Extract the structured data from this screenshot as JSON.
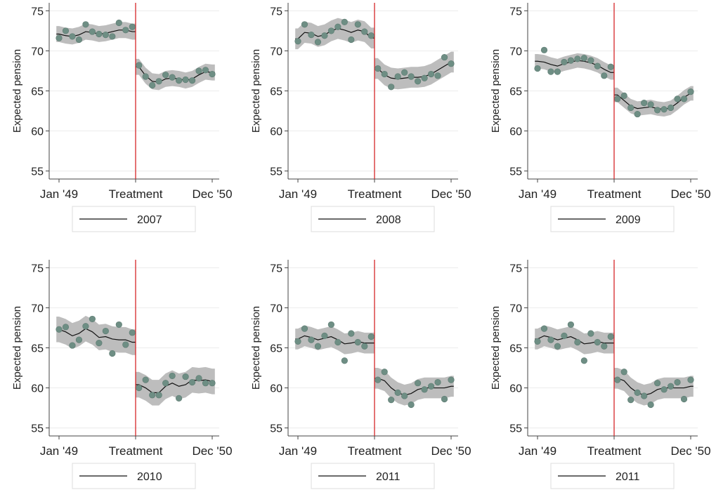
{
  "chart_data": [
    {
      "type": "line",
      "ylabel": "Expected pension",
      "ylim": [
        54,
        76
      ],
      "yticks": [
        55,
        60,
        65,
        70,
        75
      ],
      "x_tick_labels": [
        "Jan '49",
        "Treatment",
        "Dec '50"
      ],
      "legend": "2007",
      "treatment_month": 12,
      "points": [
        [
          1,
          71.6
        ],
        [
          2,
          72.5
        ],
        [
          3,
          71.8
        ],
        [
          4,
          71.4
        ],
        [
          5,
          73.3
        ],
        [
          6,
          72.4
        ],
        [
          7,
          72.1
        ],
        [
          8,
          72.0
        ],
        [
          9,
          71.8
        ],
        [
          10,
          73.5
        ],
        [
          11,
          72.6
        ],
        [
          12,
          73.0
        ],
        [
          13,
          68.2
        ],
        [
          14,
          66.8
        ],
        [
          15,
          65.7
        ],
        [
          16,
          66.2
        ],
        [
          17,
          67.0
        ],
        [
          18,
          66.7
        ],
        [
          19,
          66.3
        ],
        [
          20,
          66.4
        ],
        [
          21,
          66.3
        ],
        [
          22,
          67.5
        ],
        [
          23,
          67.6
        ],
        [
          24,
          67.1
        ]
      ],
      "fit": [
        [
          1,
          72.1
        ],
        [
          2,
          71.9
        ],
        [
          3,
          71.8
        ],
        [
          4,
          72.0
        ],
        [
          5,
          72.4
        ],
        [
          6,
          72.3
        ],
        [
          7,
          72.1
        ],
        [
          8,
          72.2
        ],
        [
          9,
          72.4
        ],
        [
          10,
          72.6
        ],
        [
          11,
          72.6
        ],
        [
          12,
          72.4
        ],
        [
          13,
          68.0
        ],
        [
          14,
          66.9
        ],
        [
          15,
          66.2
        ],
        [
          16,
          66.1
        ],
        [
          17,
          66.5
        ],
        [
          18,
          66.6
        ],
        [
          19,
          66.5
        ],
        [
          20,
          66.3
        ],
        [
          21,
          66.5
        ],
        [
          22,
          67.0
        ],
        [
          23,
          67.4
        ],
        [
          24,
          67.3
        ]
      ],
      "ci_halfwidth": 1.0
    },
    {
      "type": "line",
      "ylabel": "Expected pension",
      "ylim": [
        54,
        76
      ],
      "yticks": [
        55,
        60,
        65,
        70,
        75
      ],
      "x_tick_labels": [
        "Jan '49",
        "Treatment",
        "Dec '50"
      ],
      "legend": "2008",
      "treatment_month": 12,
      "points": [
        [
          1,
          71.2
        ],
        [
          2,
          73.3
        ],
        [
          3,
          72.0
        ],
        [
          4,
          71.1
        ],
        [
          5,
          71.9
        ],
        [
          6,
          72.5
        ],
        [
          7,
          73.0
        ],
        [
          8,
          73.6
        ],
        [
          9,
          71.4
        ],
        [
          10,
          73.3
        ],
        [
          11,
          72.4
        ],
        [
          12,
          71.9
        ],
        [
          13,
          67.8
        ],
        [
          14,
          67.1
        ],
        [
          15,
          65.5
        ],
        [
          16,
          66.8
        ],
        [
          17,
          67.3
        ],
        [
          18,
          66.8
        ],
        [
          19,
          66.2
        ],
        [
          20,
          66.6
        ],
        [
          21,
          67.1
        ],
        [
          22,
          66.9
        ],
        [
          23,
          69.2
        ],
        [
          24,
          68.4
        ]
      ],
      "fit": [
        [
          1,
          71.5
        ],
        [
          2,
          72.3
        ],
        [
          3,
          72.2
        ],
        [
          4,
          71.8
        ],
        [
          5,
          72.0
        ],
        [
          6,
          72.5
        ],
        [
          7,
          72.8
        ],
        [
          8,
          72.6
        ],
        [
          9,
          72.3
        ],
        [
          10,
          72.6
        ],
        [
          11,
          72.4
        ],
        [
          12,
          71.6
        ],
        [
          13,
          67.8
        ],
        [
          14,
          67.0
        ],
        [
          15,
          66.6
        ],
        [
          16,
          66.5
        ],
        [
          17,
          66.6
        ],
        [
          18,
          66.7
        ],
        [
          19,
          66.7
        ],
        [
          20,
          66.8
        ],
        [
          21,
          67.1
        ],
        [
          22,
          67.6
        ],
        [
          23,
          68.1
        ],
        [
          24,
          68.6
        ]
      ],
      "ci_halfwidth": 1.3
    },
    {
      "type": "line",
      "ylabel": "Expected pension",
      "ylim": [
        54,
        76
      ],
      "yticks": [
        55,
        60,
        65,
        70,
        75
      ],
      "x_tick_labels": [
        "Jan '49",
        "Treatment",
        "Dec '50"
      ],
      "legend": "2009",
      "treatment_month": 12,
      "points": [
        [
          1,
          67.8
        ],
        [
          2,
          70.1
        ],
        [
          3,
          67.4
        ],
        [
          4,
          67.4
        ],
        [
          5,
          68.6
        ],
        [
          6,
          68.8
        ],
        [
          7,
          69.0
        ],
        [
          8,
          69.1
        ],
        [
          9,
          68.8
        ],
        [
          10,
          68.1
        ],
        [
          11,
          66.9
        ],
        [
          12,
          68.0
        ],
        [
          13,
          64.0
        ],
        [
          14,
          64.4
        ],
        [
          15,
          62.9
        ],
        [
          16,
          62.1
        ],
        [
          17,
          63.5
        ],
        [
          18,
          63.3
        ],
        [
          19,
          62.6
        ],
        [
          20,
          62.7
        ],
        [
          21,
          62.9
        ],
        [
          22,
          64.0
        ],
        [
          23,
          64.0
        ],
        [
          24,
          64.9
        ]
      ],
      "fit": [
        [
          1,
          68.7
        ],
        [
          2,
          68.6
        ],
        [
          3,
          68.3
        ],
        [
          4,
          68.1
        ],
        [
          5,
          68.4
        ],
        [
          6,
          68.6
        ],
        [
          7,
          68.8
        ],
        [
          8,
          68.7
        ],
        [
          9,
          68.5
        ],
        [
          10,
          68.2
        ],
        [
          11,
          67.7
        ],
        [
          12,
          67.3
        ],
        [
          13,
          64.5
        ],
        [
          14,
          63.8
        ],
        [
          15,
          63.1
        ],
        [
          16,
          62.8
        ],
        [
          17,
          62.9
        ],
        [
          18,
          63.0
        ],
        [
          19,
          62.8
        ],
        [
          20,
          62.7
        ],
        [
          21,
          62.9
        ],
        [
          22,
          63.5
        ],
        [
          23,
          64.2
        ],
        [
          24,
          64.7
        ]
      ],
      "ci_halfwidth": 0.9
    },
    {
      "type": "line",
      "ylabel": "Expected pension",
      "ylim": [
        54,
        76
      ],
      "yticks": [
        55,
        60,
        65,
        70,
        75
      ],
      "x_tick_labels": [
        "Jan '49",
        "Treatment",
        "Dec '50"
      ],
      "legend": "2010",
      "treatment_month": 12,
      "points": [
        [
          1,
          67.3
        ],
        [
          2,
          67.6
        ],
        [
          3,
          65.3
        ],
        [
          4,
          66.0
        ],
        [
          5,
          67.7
        ],
        [
          6,
          68.6
        ],
        [
          7,
          65.6
        ],
        [
          8,
          67.1
        ],
        [
          9,
          64.3
        ],
        [
          10,
          67.9
        ],
        [
          11,
          65.4
        ],
        [
          12,
          66.9
        ],
        [
          13,
          60.0
        ],
        [
          14,
          61.0
        ],
        [
          15,
          59.1
        ],
        [
          16,
          59.1
        ],
        [
          17,
          60.6
        ],
        [
          18,
          61.5
        ],
        [
          19,
          58.7
        ],
        [
          20,
          61.4
        ],
        [
          21,
          60.7
        ],
        [
          22,
          61.2
        ],
        [
          23,
          60.6
        ],
        [
          24,
          60.6
        ]
      ],
      "fit": [
        [
          1,
          67.3
        ],
        [
          2,
          67.0
        ],
        [
          3,
          66.5
        ],
        [
          4,
          66.8
        ],
        [
          5,
          67.4
        ],
        [
          6,
          67.0
        ],
        [
          7,
          66.3
        ],
        [
          8,
          66.4
        ],
        [
          9,
          66.1
        ],
        [
          10,
          66.0
        ],
        [
          11,
          66.0
        ],
        [
          12,
          65.7
        ],
        [
          13,
          60.4
        ],
        [
          14,
          60.0
        ],
        [
          15,
          59.4
        ],
        [
          16,
          59.4
        ],
        [
          17,
          60.2
        ],
        [
          18,
          60.6
        ],
        [
          19,
          60.2
        ],
        [
          20,
          60.4
        ],
        [
          21,
          61.0
        ],
        [
          22,
          60.9
        ],
        [
          23,
          61.0
        ],
        [
          24,
          60.8
        ]
      ],
      "ci_halfwidth": 1.6
    },
    {
      "type": "line",
      "ylabel": "Expected pension",
      "ylim": [
        54,
        76
      ],
      "yticks": [
        55,
        60,
        65,
        70,
        75
      ],
      "x_tick_labels": [
        "Jan '49",
        "Treatment",
        "Dec '50"
      ],
      "legend": "2011",
      "treatment_month": 12,
      "points": [
        [
          1,
          65.8
        ],
        [
          2,
          67.4
        ],
        [
          3,
          66.0
        ],
        [
          4,
          65.2
        ],
        [
          5,
          66.5
        ],
        [
          6,
          67.9
        ],
        [
          7,
          65.7
        ],
        [
          8,
          63.4
        ],
        [
          9,
          66.8
        ],
        [
          10,
          65.7
        ],
        [
          11,
          65.2
        ],
        [
          12,
          66.4
        ],
        [
          13,
          61.0
        ],
        [
          14,
          62.0
        ],
        [
          15,
          58.5
        ],
        [
          16,
          59.4
        ],
        [
          17,
          59.0
        ],
        [
          18,
          57.9
        ],
        [
          19,
          60.6
        ],
        [
          20,
          59.8
        ],
        [
          21,
          60.2
        ],
        [
          22,
          60.7
        ],
        [
          23,
          58.6
        ],
        [
          24,
          61.0
        ]
      ],
      "fit": [
        [
          1,
          66.1
        ],
        [
          2,
          66.5
        ],
        [
          3,
          66.3
        ],
        [
          4,
          66.0
        ],
        [
          5,
          66.2
        ],
        [
          6,
          66.4
        ],
        [
          7,
          66.0
        ],
        [
          8,
          65.5
        ],
        [
          9,
          65.6
        ],
        [
          10,
          65.8
        ],
        [
          11,
          65.6
        ],
        [
          12,
          65.6
        ],
        [
          13,
          61.2
        ],
        [
          14,
          60.9
        ],
        [
          15,
          60.0
        ],
        [
          16,
          59.4
        ],
        [
          17,
          59.1
        ],
        [
          18,
          59.3
        ],
        [
          19,
          59.8
        ],
        [
          20,
          60.0
        ],
        [
          21,
          60.0
        ],
        [
          22,
          60.0
        ],
        [
          23,
          60.0
        ],
        [
          24,
          60.2
        ]
      ],
      "ci_halfwidth": 1.3
    },
    {
      "type": "line",
      "ylabel": "Expected pension",
      "ylim": [
        54,
        76
      ],
      "yticks": [
        55,
        60,
        65,
        70,
        75
      ],
      "x_tick_labels": [
        "Jan '49",
        "Treatment",
        "Dec '50"
      ],
      "legend": "2011",
      "treatment_month": 12,
      "points": [
        [
          1,
          65.8
        ],
        [
          2,
          67.4
        ],
        [
          3,
          66.0
        ],
        [
          4,
          65.2
        ],
        [
          5,
          66.5
        ],
        [
          6,
          67.9
        ],
        [
          7,
          65.7
        ],
        [
          8,
          63.4
        ],
        [
          9,
          66.8
        ],
        [
          10,
          65.7
        ],
        [
          11,
          65.2
        ],
        [
          12,
          66.4
        ],
        [
          13,
          61.0
        ],
        [
          14,
          62.0
        ],
        [
          15,
          58.5
        ],
        [
          16,
          59.4
        ],
        [
          17,
          59.0
        ],
        [
          18,
          57.9
        ],
        [
          19,
          60.6
        ],
        [
          20,
          59.8
        ],
        [
          21,
          60.2
        ],
        [
          22,
          60.7
        ],
        [
          23,
          58.6
        ],
        [
          24,
          61.0
        ]
      ],
      "fit": [
        [
          1,
          66.1
        ],
        [
          2,
          66.5
        ],
        [
          3,
          66.3
        ],
        [
          4,
          66.0
        ],
        [
          5,
          66.2
        ],
        [
          6,
          66.4
        ],
        [
          7,
          66.0
        ],
        [
          8,
          65.5
        ],
        [
          9,
          65.6
        ],
        [
          10,
          65.8
        ],
        [
          11,
          65.6
        ],
        [
          12,
          65.6
        ],
        [
          13,
          61.2
        ],
        [
          14,
          60.9
        ],
        [
          15,
          60.0
        ],
        [
          16,
          59.4
        ],
        [
          17,
          59.1
        ],
        [
          18,
          59.3
        ],
        [
          19,
          59.8
        ],
        [
          20,
          60.0
        ],
        [
          21,
          60.0
        ],
        [
          22,
          60.0
        ],
        [
          23,
          60.0
        ],
        [
          24,
          60.2
        ]
      ],
      "ci_halfwidth": 1.3
    }
  ],
  "colors": {
    "background": "#ffffff",
    "grid": "#ececec",
    "axis": "#444444",
    "ci_band": "#bdbdbd",
    "fit_line": "#111111",
    "marker": "#6e8e84",
    "treatment_line": "#d62728",
    "legend_border": "#dddddd"
  }
}
